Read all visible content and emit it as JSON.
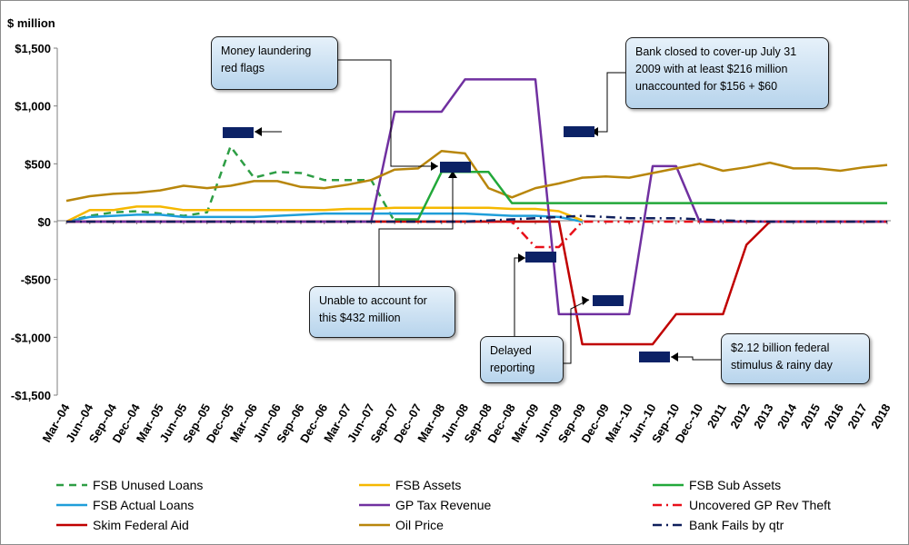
{
  "chart_data": {
    "type": "line",
    "ylabel": "$ million",
    "ylim": [
      -1500,
      1500
    ],
    "yticks": [
      "$1,500",
      "$1,000",
      "$500",
      "$0",
      "-$500",
      "-$1,000",
      "-$1,500"
    ],
    "yticks_values": [
      1500,
      1000,
      500,
      0,
      -500,
      -1000,
      -1500
    ],
    "categories": [
      "Mar--04",
      "Jun--04",
      "Sep--04",
      "Dec--04",
      "Mar--05",
      "Jun--05",
      "Sep--05",
      "Dec--05",
      "Mar--06",
      "Jun--06",
      "Sep--06",
      "Dec--06",
      "Mar--07",
      "Jun--07",
      "Sep--07",
      "Dec--07",
      "Mar--08",
      "Jun--08",
      "Sep--08",
      "Dec--08",
      "Mar--09",
      "Jun--09",
      "Sep--09",
      "Dec--09",
      "Mar--10",
      "Jun--10",
      "Sep--10",
      "Dec--10",
      "2011",
      "2012",
      "2013",
      "2014",
      "2015",
      "2016",
      "2017",
      "2018"
    ],
    "grid": false,
    "legend_position": "bottom",
    "series": [
      {
        "name": "FSB Unused Loans",
        "color": "#2e9e45",
        "dash": "8,6",
        "values": [
          0,
          50,
          80,
          90,
          70,
          50,
          80,
          650,
          380,
          430,
          420,
          360,
          360,
          360,
          0,
          null,
          null,
          null,
          null,
          null,
          null,
          null,
          null,
          null,
          null,
          null,
          null,
          null,
          null,
          null,
          null,
          null,
          null,
          null,
          null,
          null
        ]
      },
      {
        "name": "FSB Actual Loans",
        "color": "#1f9ed9",
        "dash": "",
        "values": [
          0,
          40,
          50,
          60,
          60,
          40,
          40,
          40,
          40,
          50,
          60,
          70,
          70,
          70,
          70,
          70,
          70,
          70,
          60,
          50,
          50,
          40,
          0,
          null,
          null,
          null,
          null,
          null,
          null,
          null,
          null,
          null,
          null,
          null,
          null,
          null
        ]
      },
      {
        "name": "Skim Federal Aid",
        "color": "#c00000",
        "dash": "",
        "values": [
          0,
          0,
          0,
          0,
          0,
          0,
          0,
          0,
          0,
          0,
          0,
          0,
          0,
          0,
          0,
          0,
          0,
          0,
          0,
          0,
          0,
          0,
          -1060,
          -1060,
          -1060,
          -1060,
          -800,
          -800,
          -800,
          -200,
          0,
          0,
          0,
          0,
          0,
          0
        ]
      },
      {
        "name": "FSB Assets",
        "color": "#f5b800",
        "dash": "",
        "values": [
          0,
          100,
          100,
          130,
          130,
          100,
          100,
          100,
          100,
          100,
          100,
          100,
          110,
          110,
          120,
          120,
          120,
          120,
          120,
          110,
          110,
          90,
          10,
          null,
          null,
          null,
          null,
          null,
          null,
          null,
          null,
          null,
          null,
          null,
          null,
          null
        ]
      },
      {
        "name": "GP Tax Revenue",
        "color": "#7030a0",
        "dash": "",
        "values": [
          0,
          0,
          0,
          0,
          0,
          0,
          0,
          0,
          0,
          0,
          0,
          0,
          0,
          0,
          950,
          950,
          950,
          1230,
          1230,
          1230,
          1230,
          -800,
          -800,
          -800,
          -800,
          480,
          480,
          0,
          0,
          0,
          0,
          0,
          0,
          0,
          0,
          0
        ]
      },
      {
        "name": "Oil Price",
        "color": "#b8860b",
        "dash": "",
        "values": [
          180,
          220,
          240,
          250,
          270,
          310,
          290,
          310,
          350,
          350,
          300,
          290,
          320,
          360,
          450,
          460,
          610,
          590,
          290,
          210,
          290,
          330,
          380,
          390,
          380,
          420,
          460,
          500,
          440,
          470,
          510,
          460,
          460,
          440,
          470,
          490
        ]
      },
      {
        "name": "FSB Sub Assets",
        "color": "#22a83a",
        "dash": "",
        "values": [
          null,
          null,
          null,
          null,
          null,
          null,
          null,
          null,
          null,
          null,
          null,
          null,
          null,
          null,
          20,
          20,
          430,
          430,
          430,
          160,
          160,
          160,
          160,
          160,
          160,
          160,
          160,
          160,
          160,
          160,
          160,
          160,
          160,
          160,
          160,
          160
        ]
      },
      {
        "name": "Uncovered GP Rev Theft",
        "color": "#e8101a",
        "dash": "10,5,2,5",
        "values": [
          0,
          0,
          0,
          0,
          0,
          0,
          0,
          0,
          0,
          0,
          0,
          0,
          0,
          0,
          0,
          0,
          0,
          0,
          0,
          0,
          -220,
          -220,
          0,
          0,
          0,
          0,
          0,
          0,
          0,
          0,
          0,
          0,
          0,
          0,
          0,
          0
        ]
      },
      {
        "name": "Bank Fails by qtr",
        "color": "#0f1f5c",
        "dash": "10,5,2,5",
        "values": [
          0,
          0,
          0,
          0,
          0,
          0,
          0,
          0,
          0,
          0,
          0,
          0,
          0,
          0,
          0,
          0,
          0,
          0,
          10,
          20,
          30,
          40,
          50,
          40,
          30,
          30,
          30,
          20,
          10,
          5,
          0,
          0,
          0,
          0,
          0,
          0
        ]
      }
    ],
    "legend": [
      {
        "name": "FSB Unused Loans",
        "color": "#2e9e45",
        "dash": "8,6"
      },
      {
        "name": "FSB Assets",
        "color": "#f5b800",
        "dash": ""
      },
      {
        "name": "FSB Sub Assets",
        "color": "#22a83a",
        "dash": ""
      },
      {
        "name": "FSB Actual Loans",
        "color": "#1f9ed9",
        "dash": ""
      },
      {
        "name": "GP Tax Revenue",
        "color": "#7030a0",
        "dash": ""
      },
      {
        "name": "Uncovered GP Rev Theft",
        "color": "#e8101a",
        "dash": "10,5,2,5"
      },
      {
        "name": "Skim Federal Aid",
        "color": "#c00000",
        "dash": ""
      },
      {
        "name": "Oil Price",
        "color": "#b8860b",
        "dash": ""
      },
      {
        "name": "Bank Fails by qtr",
        "color": "#0f1f5c",
        "dash": "10,5,2,5"
      }
    ]
  },
  "annotations": {
    "money_laundering": {
      "line1": "Money laundering",
      "line2": "red flags"
    },
    "bank_closed": {
      "line1": "Bank closed to cover-up July 31",
      "line2": "2009 with at least $216 million",
      "line3": "unaccounted for $156 + $60"
    },
    "unable_to_account": {
      "line1": "Unable to account for",
      "line2": "this $432 million"
    },
    "delayed_reporting": {
      "line1": "Delayed",
      "line2": "reporting"
    },
    "stimulus": {
      "line1": "$2.12 billion federal",
      "line2": "stimulus & rainy day"
    }
  },
  "marker_color": "#0c2266"
}
